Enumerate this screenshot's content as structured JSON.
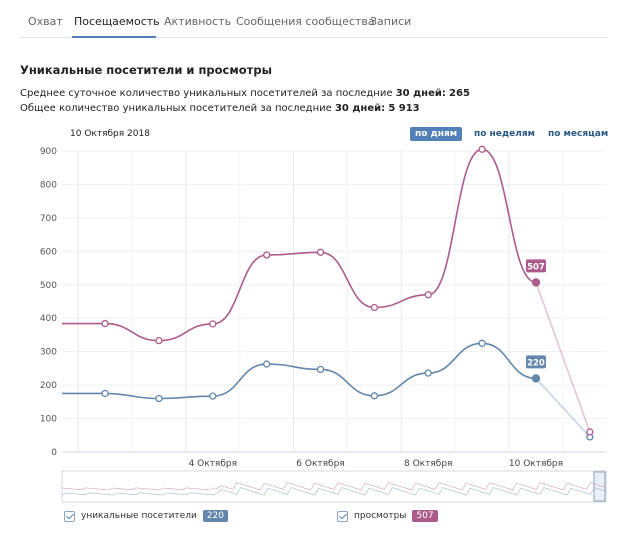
{
  "tabs": [
    {
      "label": "Охват"
    },
    {
      "label": "Посещаемость"
    },
    {
      "label": "Активность"
    },
    {
      "label": "Сообщения сообщества"
    },
    {
      "label": "Записи"
    }
  ],
  "section_title": "Уникальные посетители и просмотры",
  "stats": {
    "avg_prefix": "Среднее суточное количество уникальных посетителей за последние",
    "avg_days": "30 дней:",
    "avg_value": "265",
    "total_prefix": "Общее количество уникальных посетителей за последние",
    "total_days": "30 дней:",
    "total_value": "5 913"
  },
  "date_label": "10 Октября 2018",
  "periods": [
    {
      "label": "по дням"
    },
    {
      "label": "по неделям"
    },
    {
      "label": "по месяцам"
    }
  ],
  "legend": {
    "visitors_label": "уникальные посетители",
    "visitors_value": "220",
    "views_label": "просмотры",
    "views_value": "507"
  },
  "colors": {
    "visitors": "#6386aa",
    "views": "#ad5b8b",
    "tab_accent": "#5181b8"
  },
  "chart_data": {
    "type": "line",
    "y_ticks": [
      "0",
      "100",
      "200",
      "300",
      "400",
      "500",
      "600",
      "700",
      "800",
      "900"
    ],
    "ylim": [
      0,
      900
    ],
    "x_ticks": [
      {
        "label": "4 Октября",
        "x": 4
      },
      {
        "label": "6 Октября",
        "x": 6
      },
      {
        "label": "8 Октября",
        "x": 8
      },
      {
        "label": "10 Октября",
        "x": 10
      }
    ],
    "xlim": [
      1.2,
      11.3
    ],
    "series": [
      {
        "name": "уникальные посетители",
        "color": "#6386aa",
        "points": [
          [
            2,
            175
          ],
          [
            3,
            160
          ],
          [
            4,
            167
          ],
          [
            5,
            263
          ],
          [
            6,
            247
          ],
          [
            7,
            168
          ],
          [
            8,
            236
          ],
          [
            9,
            325
          ],
          [
            10,
            220
          ],
          [
            11,
            45
          ]
        ],
        "highlight_index": 8,
        "highlight_label": "220"
      },
      {
        "name": "просмотры",
        "color": "#ad5b8b",
        "points": [
          [
            2,
            384
          ],
          [
            3,
            333
          ],
          [
            4,
            383
          ],
          [
            5,
            589
          ],
          [
            6,
            597
          ],
          [
            7,
            432
          ],
          [
            8,
            470
          ],
          [
            9,
            905
          ],
          [
            10,
            507
          ],
          [
            11,
            60
          ]
        ],
        "highlight_index": 8,
        "highlight_label": "507"
      }
    ]
  }
}
